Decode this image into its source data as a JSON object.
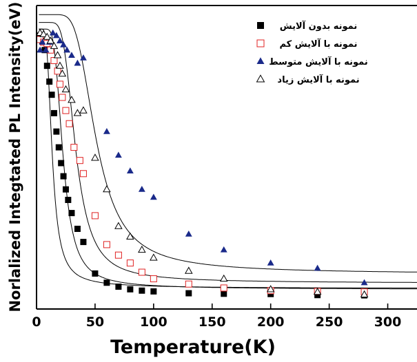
{
  "chart_data": {
    "type": "scatter",
    "title": "",
    "xlabel": "Temperature(K)",
    "ylabel": "Norlalized Integtated PL Intensity(eV)",
    "xlim": [
      0,
      325
    ],
    "ylim": [
      0,
      1.0
    ],
    "xticks": [
      "0",
      "50",
      "100",
      "150",
      "200",
      "250",
      "300"
    ],
    "xtick_values": [
      0,
      50,
      100,
      150,
      200,
      250,
      300
    ],
    "yticks_shown": false,
    "grid": false,
    "legend_position": "top-right",
    "series": [
      {
        "name": "نمونه بدون آلایش",
        "marker": "filled-square",
        "color": "#000000",
        "x": [
          3,
          5,
          7,
          9,
          11,
          13,
          15,
          17,
          19,
          21,
          23,
          25,
          27,
          30,
          35,
          40,
          50,
          60,
          70,
          80,
          90,
          100,
          130,
          160,
          200,
          240,
          280
        ],
        "y": [
          0.985,
          0.965,
          0.93,
          0.87,
          0.81,
          0.76,
          0.69,
          0.62,
          0.56,
          0.5,
          0.45,
          0.4,
          0.36,
          0.31,
          0.25,
          0.2,
          0.08,
          0.045,
          0.03,
          0.02,
          0.015,
          0.012,
          0.005,
          0.003,
          0.002,
          -0.002,
          -0.003
        ]
      },
      {
        "name": "نمونه با آلایش کم",
        "marker": "open-square",
        "color": "#e02020",
        "x": [
          3,
          6,
          9,
          12,
          15,
          18,
          20,
          22,
          25,
          28,
          32,
          37,
          40,
          50,
          60,
          70,
          80,
          90,
          100,
          130,
          160,
          200,
          240,
          280
        ],
        "y": [
          0.97,
          0.96,
          0.955,
          0.93,
          0.89,
          0.85,
          0.8,
          0.75,
          0.7,
          0.65,
          0.56,
          0.51,
          0.46,
          0.3,
          0.19,
          0.15,
          0.12,
          0.085,
          0.06,
          0.04,
          0.025,
          0.015,
          0.012,
          0.01
        ]
      },
      {
        "name": "نمونه با آلایش متوسط",
        "marker": "filled-triangle",
        "color": "#1a2a8a",
        "x": [
          3,
          5,
          8,
          11,
          14,
          17,
          20,
          23,
          26,
          30,
          35,
          40,
          60,
          70,
          80,
          90,
          100,
          130,
          160,
          200,
          240,
          280
        ],
        "y": [
          0.93,
          0.96,
          0.93,
          0.96,
          0.995,
          0.985,
          0.965,
          0.95,
          0.93,
          0.91,
          0.88,
          0.9,
          0.62,
          0.53,
          0.47,
          0.4,
          0.37,
          0.23,
          0.17,
          0.12,
          0.1,
          0.045
        ]
      },
      {
        "name": "نمونه با آلایش زیاد",
        "marker": "open-triangle",
        "color": "#000000",
        "x": [
          3,
          6,
          9,
          12,
          15,
          18,
          20,
          22,
          25,
          30,
          35,
          40,
          50,
          60,
          70,
          80,
          90,
          100,
          130,
          160,
          200,
          240,
          280
        ],
        "y": [
          0.995,
          0.99,
          0.98,
          0.965,
          0.945,
          0.91,
          0.87,
          0.84,
          0.78,
          0.74,
          0.69,
          0.7,
          0.52,
          0.4,
          0.26,
          0.22,
          0.17,
          0.14,
          0.09,
          0.06,
          0.02,
          0.01,
          0.0
        ]
      }
    ],
    "fit_curves": [
      {
        "for": "نمونه بدون آلایش",
        "form": "1/(1+a*exp(-E/T))+c",
        "a": 80,
        "E": 60,
        "c": 0.01
      },
      {
        "for": "نمونه با آلایش کم",
        "form": "1/(1+a*exp(-E/T))+c",
        "a": 120,
        "E": 110,
        "c": 0.01
      },
      {
        "for": "نمونه با آلایش متوسط",
        "form": "1/(1+a*exp(-E/T))+c",
        "a": 100,
        "E": 240,
        "c": 0.065
      },
      {
        "for": "نمونه با آلایش زیاد",
        "form": "1/(1+a*exp(-E/T))+c",
        "a": 150,
        "E": 170,
        "c": 0.035
      }
    ]
  }
}
